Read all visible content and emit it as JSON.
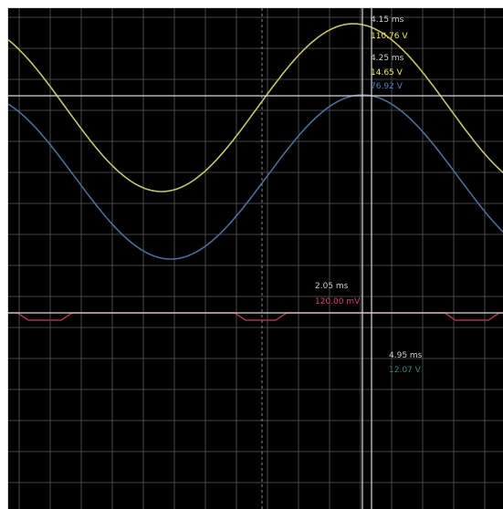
{
  "display": {
    "background": "#000000",
    "grid_color": "#5a5a5a",
    "cursor_color": "#d8d8d8",
    "frame_color": "#d6d6d6"
  },
  "traces": [
    {
      "name": "channel-1",
      "color": "#c8c36a"
    },
    {
      "name": "channel-2",
      "color": "#4a6f99"
    },
    {
      "name": "channel-3",
      "color": "#a8344e"
    }
  ],
  "readouts": {
    "top": {
      "time": "4.15 ms",
      "value": "110.76 V"
    },
    "ch1": {
      "time": "4.25 ms",
      "value": "14.65 V",
      "value2": "76.92 V"
    },
    "cursor_mid": {
      "time": "2.05 ms",
      "value": "120.00 mV"
    },
    "cursor_low": {
      "time": "4.95 ms",
      "value": "12.07 V"
    }
  },
  "readout_colors": {
    "yellow": "#f3ee48",
    "blue": "#4d82c8",
    "pink": "#e23d78",
    "teal": "#2f8f7a"
  }
}
